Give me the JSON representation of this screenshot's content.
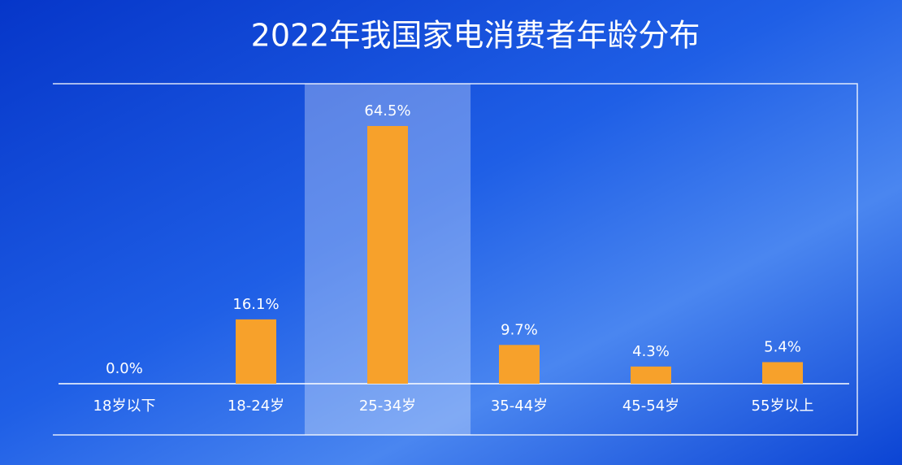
{
  "chart_data": {
    "type": "bar",
    "title": "2022年我国家电消费者年龄分布",
    "categories": [
      "18岁以下",
      "18-24岁",
      "25-34岁",
      "35-44岁",
      "45-54岁",
      "55岁以上"
    ],
    "values": [
      0,
      16.1,
      64.5,
      9.7,
      4.3,
      5.4
    ],
    "value_labels": [
      "0.0%",
      "16.1%",
      "64.5%",
      "9.7%",
      "4.3%",
      "5.4%"
    ],
    "color": "#f7a12b",
    "highlight": 2
  }
}
